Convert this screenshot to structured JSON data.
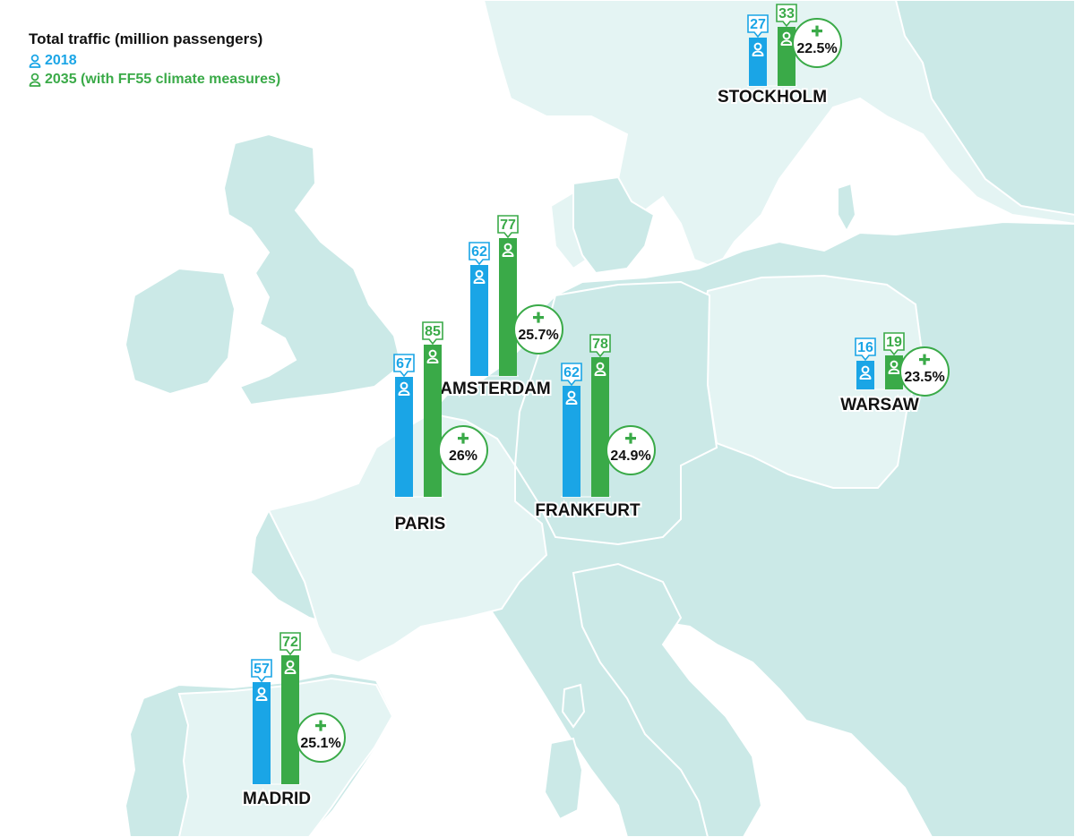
{
  "legend": {
    "title": "Total traffic (million passengers)",
    "series_2018": "2018",
    "series_2035": "2035 (with FF55 climate measures)"
  },
  "colors": {
    "series_2018": "#1aa5e6",
    "series_2035": "#3aaa48",
    "sea": "#ffffff",
    "land_main": "#cbe9e7",
    "land_light": "#e4f4f3",
    "border": "#ffffff"
  },
  "icons": {
    "person": "person-icon",
    "plus": "plus-icon"
  },
  "chart_data": {
    "type": "bar",
    "categories": [
      "STOCKHOLM",
      "AMSTERDAM",
      "PARIS",
      "FRANKFURT",
      "WARSAW",
      "MADRID"
    ],
    "series": [
      {
        "name": "2018",
        "values": [
          27,
          62,
          67,
          62,
          16,
          57
        ]
      },
      {
        "name": "2035 (with FF55 climate measures)",
        "values": [
          33,
          77,
          85,
          78,
          19,
          72
        ]
      }
    ],
    "growth_labels": [
      "22.5%",
      "25.7%",
      "26%",
      "24.9%",
      "23.5%",
      "25.1%"
    ],
    "value_labels_2018": [
      "27",
      "62",
      "67",
      "62",
      "16",
      "57"
    ],
    "value_labels_2035": [
      "33",
      "77",
      "85",
      "78",
      "19",
      "72"
    ]
  }
}
